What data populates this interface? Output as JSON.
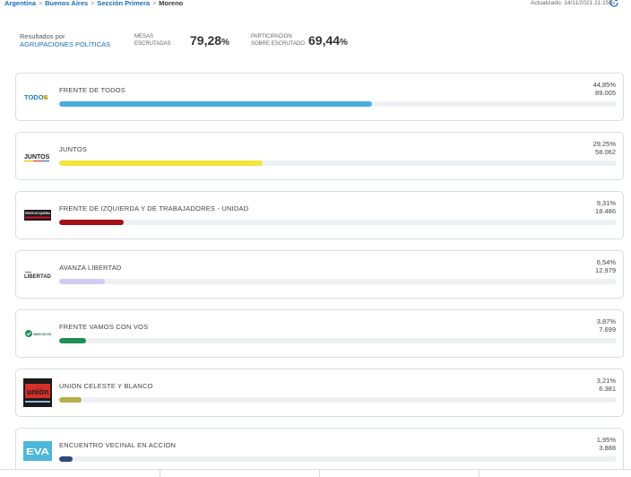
{
  "breadcrumb": {
    "items": [
      "Argentina",
      "Buenos Aires",
      "Sección Primera"
    ],
    "current": "Moreno",
    "separator": ">"
  },
  "updated": "Actualizado: 14/11/2021 21:15hs",
  "summary": {
    "title_line1": "Resultados por",
    "title_line2": "AGRUPACIONES POLÍTICAS",
    "mesas_label_1": "MESAS",
    "mesas_label_2": "ESCRUTADAS",
    "mesas_value": "79,28",
    "mesas_unit": "%",
    "part_label_1": "PARTICIPACION",
    "part_label_2": "SOBRE ESCRUTADO",
    "part_value": "69,44",
    "part_unit": "%"
  },
  "parties": [
    {
      "name": "FRENTE DE TODOS",
      "percent": "44,85%",
      "votes": "89.005",
      "share": 44.85,
      "color": "#4aaee0",
      "logo_text": "TODOS"
    },
    {
      "name": "JUNTOS",
      "percent": "29,25%",
      "votes": "58.062",
      "share": 29.25,
      "color": "#f2e53a",
      "logo_text": "JUNTOS"
    },
    {
      "name": "FRENTE DE IZQUIERDA Y DE TRABAJADORES - UNIDAD",
      "percent": "9,31%",
      "votes": "18.486",
      "share": 9.31,
      "color": "#a50f16",
      "logo_text": "FRENTE DE IZQUIERDA"
    },
    {
      "name": "AVANZA LIBERTAD",
      "percent": "6,54%",
      "votes": "12.979",
      "share": 6.54,
      "color": "#cfcdf2",
      "logo_text": "LIBERTAD"
    },
    {
      "name": "FRENTE VAMOS CON VOS",
      "percent": "3,87%",
      "votes": "7.699",
      "share": 3.87,
      "color": "#1f8f55",
      "logo_text": "VAMOS CON VOS"
    },
    {
      "name": "UNION CELESTE Y BLANCO",
      "percent": "3,21%",
      "votes": "6.381",
      "share": 3.21,
      "color": "#b5b04a",
      "logo_text": "unión"
    },
    {
      "name": "ENCUENTRO VECINAL EN ACCION",
      "percent": "1,95%",
      "votes": "3.888",
      "share": 1.95,
      "color": "#2d4a7a",
      "logo_text": "EVA"
    }
  ],
  "icons": {
    "refresh": "refresh-icon"
  }
}
